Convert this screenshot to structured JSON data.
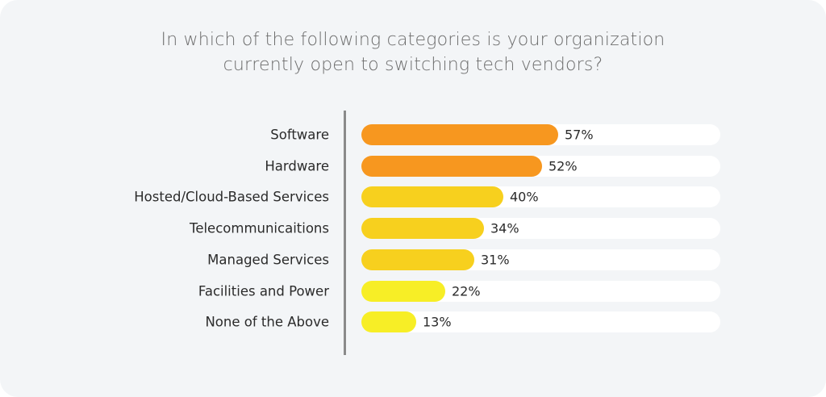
{
  "chart_data": {
    "type": "bar",
    "orientation": "horizontal",
    "title": "In which of the following categories is your organization currently open to switching tech vendors?",
    "categories": [
      "Software",
      "Hardware",
      "Hosted/Cloud-Based Services",
      "Telecommunicaitions",
      "Managed Services",
      "Facilities and Power",
      "None of the Above"
    ],
    "values": [
      57,
      52,
      40,
      34,
      31,
      22,
      13
    ],
    "value_labels": [
      "57%",
      "52%",
      "40%",
      "34%",
      "31%",
      "22%",
      "13%"
    ],
    "colors": [
      "#f7971f",
      "#f7971f",
      "#f7d01e",
      "#f7d01e",
      "#f7d01e",
      "#f7ee26",
      "#f7ee26"
    ],
    "track_color": "#ffffff",
    "xlim": [
      0,
      100
    ],
    "grid": false,
    "legend": "none"
  }
}
